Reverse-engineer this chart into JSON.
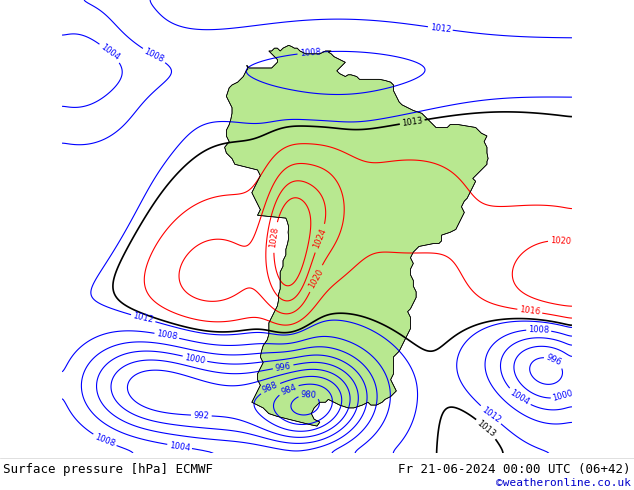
{
  "title_left": "Surface pressure [hPa] ECMWF",
  "title_right": "Fr 21-06-2024 00:00 UTC (06+42)",
  "credit": "©weatheronline.co.uk",
  "bg_ocean": "#c8d8e8",
  "bg_land": "#b8e890",
  "bg_highland": "#a0c870",
  "figsize": [
    6.34,
    4.9
  ],
  "dpi": 100,
  "bottom_bar_height": 0.075,
  "credit_color": "#0000cc",
  "extent_lon": [
    -110,
    -20
  ],
  "extent_lat": [
    -60,
    20
  ],
  "label_fontsize": 6,
  "isobar_interval": 4,
  "isobar_min": 980,
  "isobar_max": 1032
}
